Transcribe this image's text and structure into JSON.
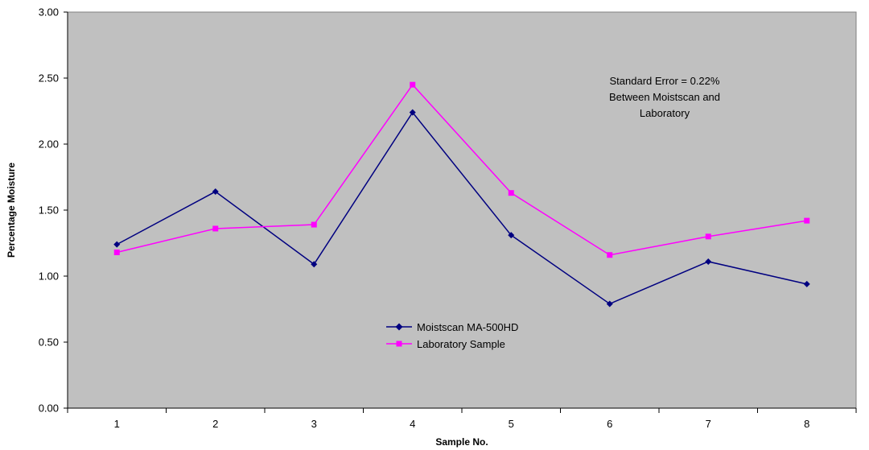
{
  "chart_data": {
    "type": "line",
    "categories": [
      "1",
      "2",
      "3",
      "4",
      "5",
      "6",
      "7",
      "8"
    ],
    "series": [
      {
        "name": "Moistscan MA-500HD",
        "values": [
          1.24,
          1.64,
          1.09,
          2.24,
          1.31,
          0.79,
          1.11,
          0.94
        ],
        "color": "#000080",
        "marker": "diamond"
      },
      {
        "name": "Laboratory Sample",
        "values": [
          1.18,
          1.36,
          1.39,
          2.45,
          1.63,
          1.16,
          1.3,
          1.42
        ],
        "color": "#FF00FF",
        "marker": "square"
      }
    ],
    "xlabel": "Sample No.",
    "ylabel": "Percentage Moisture",
    "ylim": [
      0,
      3
    ],
    "yticks": [
      "0.00",
      "0.50",
      "1.00",
      "1.50",
      "2.00",
      "2.50",
      "3.00"
    ],
    "plot_background": "#C0C0C0",
    "grid": false,
    "legend_position": "center",
    "annotation": [
      "Standard Error = 0.22%",
      "Between Moistscan and",
      "Laboratory"
    ]
  }
}
